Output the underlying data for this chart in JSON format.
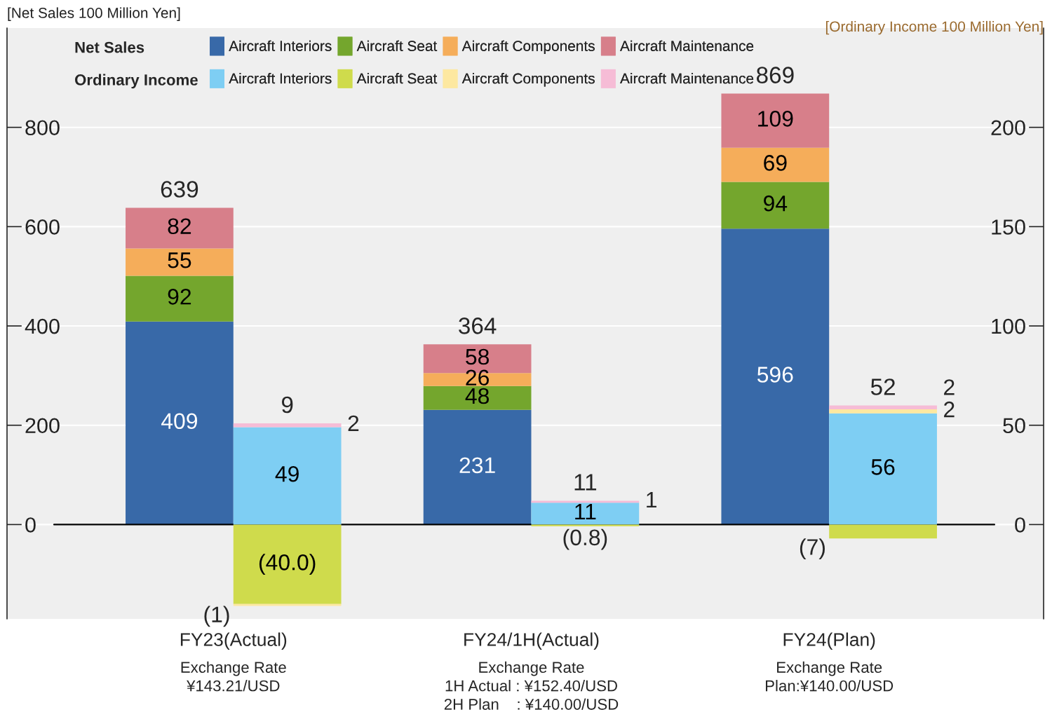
{
  "chart_data": [
    {
      "type": "bar",
      "stacked": true,
      "legend": "top left",
      "legend_title": "Net Sales",
      "ylabel": "[Net Sales 100 Million Yen]",
      "categories": [
        "FY23(Actual)",
        "FY24/1H(Actual)",
        "FY24(Plan)"
      ],
      "ylim": [
        -190,
        1000
      ],
      "yticks": [
        0,
        200,
        400,
        600,
        800
      ],
      "grid": "y",
      "series": [
        {
          "name": "Aircraft Interiors",
          "color": "#3869a8",
          "values": [
            409,
            231,
            596
          ],
          "value_labels": [
            "409",
            "231",
            "596"
          ]
        },
        {
          "name": "Aircraft Seat",
          "color": "#74a62d",
          "values": [
            92,
            48,
            94
          ],
          "value_labels": [
            "92",
            "48",
            "94"
          ]
        },
        {
          "name": "Aircraft Components",
          "color": "#f5ad5a",
          "values": [
            55,
            26,
            69
          ],
          "value_labels": [
            "55",
            "26",
            "69"
          ]
        },
        {
          "name": "Aircraft Maintenance",
          "color": "#d77f8a",
          "values": [
            82,
            58,
            109
          ],
          "value_labels": [
            "82",
            "58",
            "109"
          ]
        }
      ],
      "totals": [
        "639",
        "364",
        "869"
      ],
      "annotations": [
        "Exchange Rate\n¥143.21/USD",
        "Exchange Rate\n1H Actual : ¥152.40/USD\n2H Plan    : ¥140.00/USD",
        "Exchange Rate\nPlan:¥140.00/USD"
      ]
    },
    {
      "type": "bar",
      "stacked": true,
      "legend": "top left",
      "legend_title": "Ordinary Income",
      "ylabel": "[Ordinary Income 100 Million Yen]",
      "ylim": [
        -47.5,
        250
      ],
      "yticks": [
        0,
        50,
        100,
        150,
        200
      ],
      "series": [
        {
          "name": "Aircraft Interiors",
          "color": "#7ecef3",
          "values": [
            49,
            11,
            56
          ],
          "value_labels": [
            "49",
            "11",
            "56"
          ]
        },
        {
          "name": "Aircraft Seat",
          "color": "#cfdb4c",
          "values": [
            -40.0,
            -0.8,
            -7
          ],
          "value_labels": [
            "(40.0)",
            "(0.8)",
            "(7)"
          ]
        },
        {
          "name": "Aircraft Components",
          "color": "#fde8a0",
          "values": [
            -1,
            null,
            2
          ],
          "value_labels": [
            "(1)",
            null,
            "2"
          ]
        },
        {
          "name": "Aircraft Maintenance",
          "color": "#f6bcd6",
          "values": [
            2,
            1,
            2
          ],
          "value_labels": [
            "2",
            "1",
            "2"
          ]
        }
      ],
      "totals": [
        "9",
        "11",
        "52"
      ]
    }
  ]
}
